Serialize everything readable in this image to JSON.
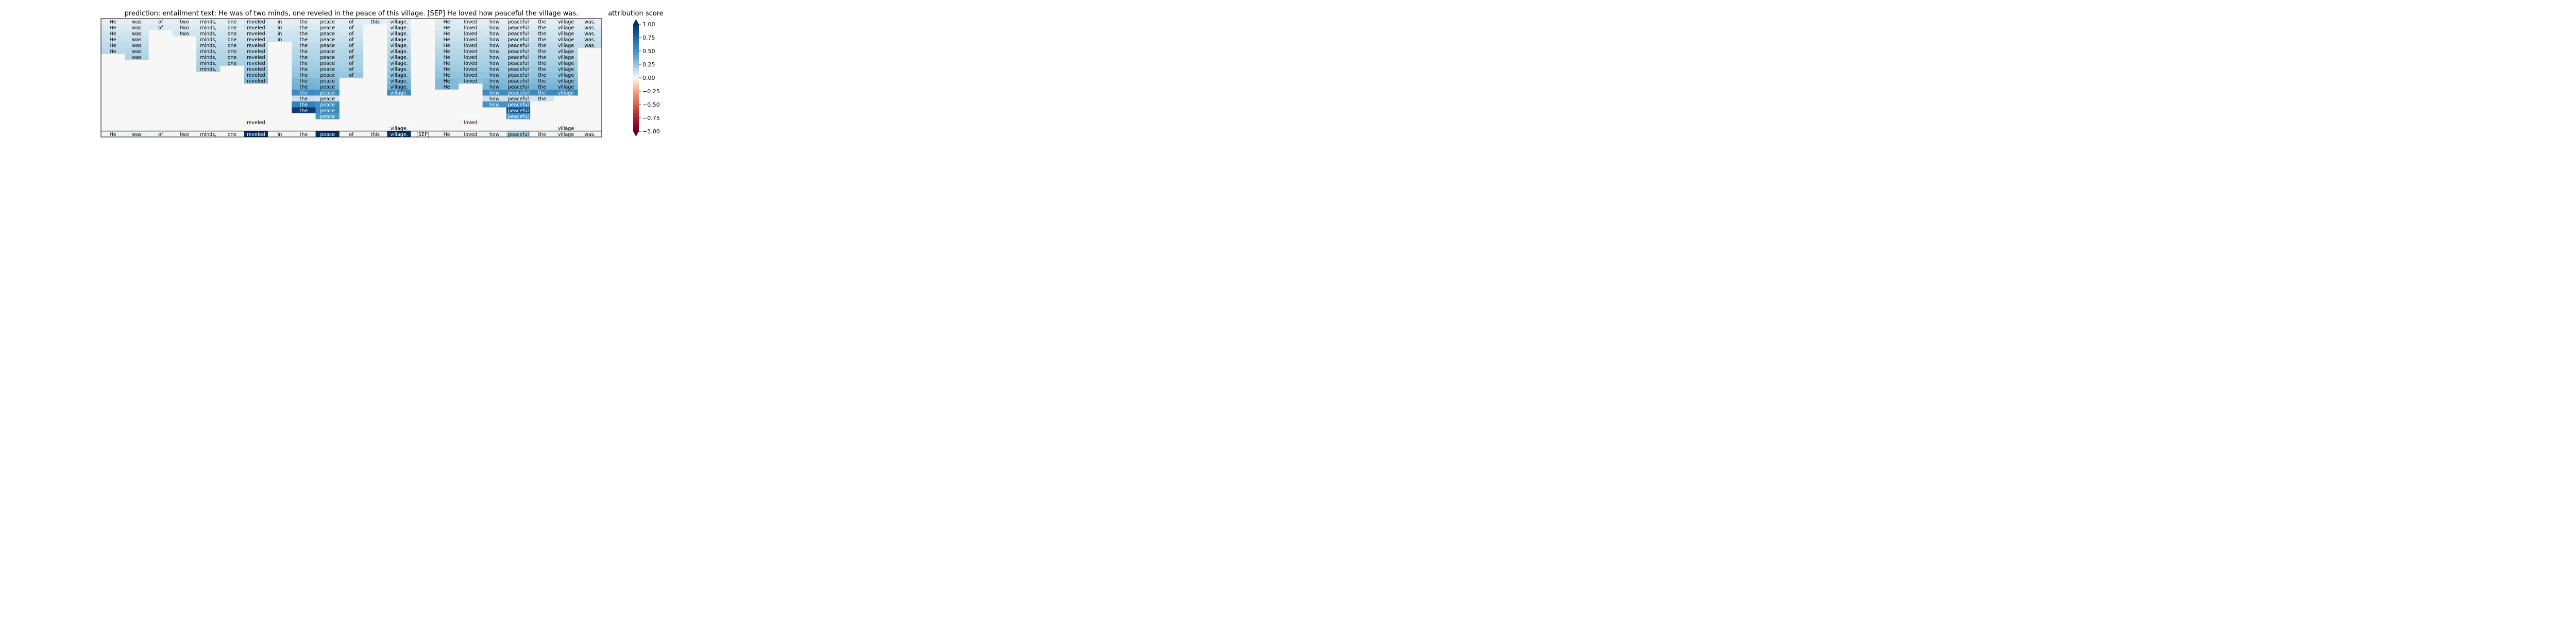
{
  "chart_data": {
    "type": "heatmap",
    "title": "prediction:  entailment     text:  He was of two minds, one reveled in the peace of this village. [SEP] He loved how peaceful the village was.",
    "colorbar_label": "attribution score",
    "colorbar_ticks": [
      "1.00",
      "0.75",
      "0.50",
      "0.25",
      "0.00",
      "−0.25",
      "−0.50",
      "−0.75",
      "−1.00"
    ],
    "colorbar_range": [
      -1,
      1
    ],
    "colormap": "RdBu",
    "tokens": [
      "He",
      "was",
      "of",
      "two",
      "minds,",
      "one",
      "reveled",
      "in",
      "the",
      "peace",
      "of",
      "this",
      "village.",
      "[SEP]",
      "He",
      "loved",
      "how",
      "peaceful",
      "the",
      "village",
      "was."
    ],
    "rows": [
      [
        [
          "He",
          0.05
        ],
        [
          "was",
          0.05
        ],
        [
          "of",
          0.05
        ],
        [
          "two",
          0.05
        ],
        [
          "minds,",
          0.06
        ],
        [
          "one",
          0.06
        ],
        [
          "reveled",
          0.09
        ],
        [
          "in",
          0.05
        ],
        [
          "the",
          0.05
        ],
        [
          "peace",
          0.05
        ],
        [
          "of",
          0.06
        ],
        [
          "this",
          0.05
        ],
        [
          "village.",
          0.06
        ],
        null,
        [
          "He",
          0.06
        ],
        [
          "loved",
          0.06
        ],
        [
          "how",
          0.05
        ],
        [
          "peaceful",
          0.06
        ],
        [
          "the",
          0.05
        ],
        [
          "village",
          0.06
        ],
        [
          "was.",
          0.05
        ]
      ],
      [
        [
          "He",
          0.07
        ],
        [
          "was",
          0.07
        ],
        [
          "of",
          0.08
        ],
        [
          "two",
          0.07
        ],
        [
          "minds,",
          0.07
        ],
        [
          "one",
          0.08
        ],
        [
          "reveled",
          0.1
        ],
        [
          "in",
          0.07
        ],
        [
          "the",
          0.08
        ],
        [
          "peace",
          0.07
        ],
        [
          "of",
          0.08
        ],
        null,
        [
          "village.",
          0.07
        ],
        null,
        [
          "He",
          0.08
        ],
        [
          "loved",
          0.07
        ],
        [
          "how",
          0.08
        ],
        [
          "peaceful",
          0.07
        ],
        [
          "the",
          0.08
        ],
        [
          "village",
          0.08
        ],
        [
          "was.",
          0.07
        ]
      ],
      [
        [
          "He",
          0.1
        ],
        [
          "was",
          0.1
        ],
        null,
        [
          "two",
          0.1
        ],
        [
          "minds,",
          0.1
        ],
        [
          "one",
          0.11
        ],
        [
          "reveled",
          0.11
        ],
        [
          "in",
          0.1
        ],
        [
          "the",
          0.11
        ],
        [
          "peace",
          0.11
        ],
        [
          "of",
          0.1
        ],
        null,
        [
          "village.",
          0.11
        ],
        null,
        [
          "He",
          0.1
        ],
        [
          "loved",
          0.11
        ],
        [
          "how",
          0.1
        ],
        [
          "peaceful",
          0.1
        ],
        [
          "the",
          0.11
        ],
        [
          "village",
          0.1
        ],
        [
          "was.",
          0.1
        ]
      ],
      [
        [
          "He",
          0.12
        ],
        [
          "was",
          0.12
        ],
        null,
        null,
        [
          "minds,",
          0.12
        ],
        [
          "one",
          0.12
        ],
        [
          "reveled",
          0.12
        ],
        [
          "in",
          0.12
        ],
        [
          "the",
          0.12
        ],
        [
          "peace",
          0.12
        ],
        [
          "of",
          0.12
        ],
        null,
        [
          "village.",
          0.12
        ],
        null,
        [
          "He",
          0.12
        ],
        [
          "loved",
          0.12
        ],
        [
          "how",
          0.12
        ],
        [
          "peaceful",
          0.12
        ],
        [
          "the",
          0.12
        ],
        [
          "village",
          0.12
        ],
        [
          "was.",
          0.12
        ]
      ],
      [
        [
          "He",
          0.14
        ],
        [
          "was",
          0.14
        ],
        null,
        null,
        [
          "minds,",
          0.14
        ],
        [
          "one",
          0.14
        ],
        [
          "reveled",
          0.14
        ],
        null,
        [
          "the",
          0.14
        ],
        [
          "peace",
          0.14
        ],
        [
          "of",
          0.14
        ],
        null,
        [
          "village.",
          0.14
        ],
        null,
        [
          "He",
          0.14
        ],
        [
          "loved",
          0.14
        ],
        [
          "how",
          0.14
        ],
        [
          "peaceful",
          0.14
        ],
        [
          "the",
          0.14
        ],
        [
          "village",
          0.14
        ],
        [
          "was.",
          0.14
        ]
      ],
      [
        [
          "He",
          0.16
        ],
        [
          "was",
          0.16
        ],
        null,
        null,
        [
          "minds,",
          0.16
        ],
        [
          "one",
          0.16
        ],
        [
          "reveled",
          0.16
        ],
        null,
        [
          "the",
          0.16
        ],
        [
          "peace",
          0.16
        ],
        [
          "of",
          0.16
        ],
        null,
        [
          "village.",
          0.16
        ],
        null,
        [
          "He",
          0.16
        ],
        [
          "loved",
          0.16
        ],
        [
          "how",
          0.16
        ],
        [
          "peaceful",
          0.16
        ],
        [
          "the",
          0.16
        ],
        [
          "village",
          0.16
        ],
        null
      ],
      [
        null,
        [
          "was",
          0.18
        ],
        null,
        null,
        [
          "minds,",
          0.18
        ],
        [
          "one",
          0.18
        ],
        [
          "reveled",
          0.18
        ],
        null,
        [
          "the",
          0.18
        ],
        [
          "peace",
          0.18
        ],
        [
          "of",
          0.18
        ],
        null,
        [
          "village.",
          0.18
        ],
        null,
        [
          "He",
          0.18
        ],
        [
          "loved",
          0.18
        ],
        [
          "how",
          0.18
        ],
        [
          "peaceful",
          0.18
        ],
        [
          "the",
          0.18
        ],
        [
          "village",
          0.18
        ],
        null
      ],
      [
        null,
        null,
        null,
        null,
        [
          "minds,",
          0.19
        ],
        [
          "one",
          0.19
        ],
        [
          "reveled",
          0.2
        ],
        null,
        [
          "the",
          0.2
        ],
        [
          "peace",
          0.2
        ],
        [
          "of",
          0.19
        ],
        null,
        [
          "village.",
          0.2
        ],
        null,
        [
          "He",
          0.2
        ],
        [
          "loved",
          0.2
        ],
        [
          "how",
          0.2
        ],
        [
          "peaceful",
          0.2
        ],
        [
          "the",
          0.2
        ],
        [
          "village",
          0.2
        ],
        null
      ],
      [
        null,
        null,
        null,
        null,
        [
          "minds,",
          0.21
        ],
        null,
        [
          "reveled",
          0.22
        ],
        null,
        [
          "the",
          0.22
        ],
        [
          "peace",
          0.22
        ],
        [
          "of",
          0.21
        ],
        null,
        [
          "village.",
          0.22
        ],
        null,
        [
          "He",
          0.22
        ],
        [
          "loved",
          0.22
        ],
        [
          "how",
          0.22
        ],
        [
          "peaceful",
          0.22
        ],
        [
          "the",
          0.22
        ],
        [
          "village",
          0.22
        ],
        null
      ],
      [
        null,
        null,
        null,
        null,
        null,
        null,
        [
          "reveled",
          0.25
        ],
        null,
        [
          "the",
          0.25
        ],
        [
          "peace",
          0.25
        ],
        [
          "of",
          0.24
        ],
        null,
        [
          "village.",
          0.25
        ],
        null,
        [
          "He",
          0.25
        ],
        [
          "loved",
          0.25
        ],
        [
          "how",
          0.25
        ],
        [
          "peaceful",
          0.25
        ],
        [
          "the",
          0.25
        ],
        [
          "village",
          0.25
        ],
        null
      ],
      [
        null,
        null,
        null,
        null,
        null,
        null,
        [
          "reveled",
          0.3
        ],
        null,
        [
          "the",
          0.32
        ],
        [
          "peace",
          0.3
        ],
        null,
        null,
        [
          "village.",
          0.31
        ],
        null,
        [
          "He",
          0.3
        ],
        [
          "loved",
          0.28
        ],
        [
          "how",
          0.3
        ],
        [
          "peaceful",
          0.3
        ],
        [
          "the",
          0.3
        ],
        [
          "village",
          0.3
        ],
        null
      ],
      [
        null,
        null,
        null,
        null,
        null,
        null,
        null,
        null,
        [
          "the",
          0.35
        ],
        [
          "peace",
          0.34
        ],
        null,
        null,
        [
          "village.",
          0.35
        ],
        null,
        [
          "He",
          0.3
        ],
        null,
        [
          "how",
          0.34
        ],
        [
          "peaceful",
          0.34
        ],
        [
          "the",
          0.34
        ],
        [
          "village",
          0.34
        ],
        null
      ],
      [
        null,
        null,
        null,
        null,
        null,
        null,
        null,
        null,
        [
          "the",
          0.55
        ],
        [
          "peace",
          0.52
        ],
        null,
        null,
        [
          "village.",
          0.55
        ],
        null,
        null,
        null,
        [
          "how",
          0.55
        ],
        [
          "peaceful",
          0.55
        ],
        [
          "the",
          0.55
        ],
        [
          "village",
          0.55
        ],
        null
      ],
      [
        null,
        null,
        null,
        null,
        null,
        null,
        null,
        null,
        [
          "the",
          0.12
        ],
        [
          "peace",
          0.1
        ],
        null,
        null,
        null,
        null,
        null,
        null,
        [
          "how",
          0.12
        ],
        [
          "peaceful",
          0.12
        ],
        [
          "the",
          0.1
        ],
        null,
        null
      ],
      [
        null,
        null,
        null,
        null,
        null,
        null,
        null,
        null,
        [
          "the",
          0.6
        ],
        [
          "peace",
          0.52
        ],
        null,
        null,
        null,
        null,
        null,
        null,
        [
          "how",
          0.5
        ],
        [
          "peaceful",
          0.52
        ],
        null,
        null,
        null
      ],
      [
        null,
        null,
        null,
        null,
        null,
        null,
        null,
        null,
        [
          "the",
          0.95
        ],
        [
          "peace",
          0.55
        ],
        null,
        null,
        null,
        null,
        null,
        null,
        null,
        [
          "peaceful",
          0.85
        ],
        null,
        null,
        null
      ],
      [
        null,
        null,
        null,
        null,
        null,
        null,
        null,
        null,
        null,
        [
          "peace",
          0.48
        ],
        null,
        null,
        null,
        null,
        null,
        null,
        null,
        [
          "peaceful",
          0.5
        ],
        null,
        null,
        null
      ],
      [
        null,
        null,
        null,
        null,
        null,
        null,
        [
          "reveled",
          -0.01
        ],
        null,
        null,
        null,
        null,
        null,
        null,
        null,
        null,
        [
          "loved",
          -0.02
        ],
        null,
        null,
        null,
        null,
        null
      ],
      [
        null,
        null,
        null,
        null,
        null,
        null,
        null,
        null,
        null,
        null,
        null,
        null,
        [
          "village.",
          0.01
        ],
        null,
        null,
        null,
        null,
        null,
        null,
        [
          "village",
          0.01
        ],
        null
      ],
      [
        [
          "He",
          0.02
        ],
        [
          "was",
          0.02
        ],
        [
          "of",
          0.01
        ],
        [
          "two",
          0.01
        ],
        [
          "minds,",
          0.01
        ],
        [
          "one",
          0.0
        ],
        [
          "reveled",
          1.0
        ],
        [
          "in",
          0.01
        ],
        [
          "the",
          0.01
        ],
        [
          "peace",
          1.0
        ],
        [
          "of",
          0.01
        ],
        [
          "this",
          0.01
        ],
        [
          "village.",
          1.0
        ],
        [
          "[SEP]",
          0.0
        ],
        [
          "He",
          0.01
        ],
        [
          "loved",
          0.01
        ],
        [
          "how",
          0.02
        ],
        [
          "peaceful",
          0.18
        ],
        [
          "the",
          0.01
        ],
        [
          "village",
          0.02
        ],
        [
          "was.",
          0.01
        ]
      ]
    ]
  }
}
